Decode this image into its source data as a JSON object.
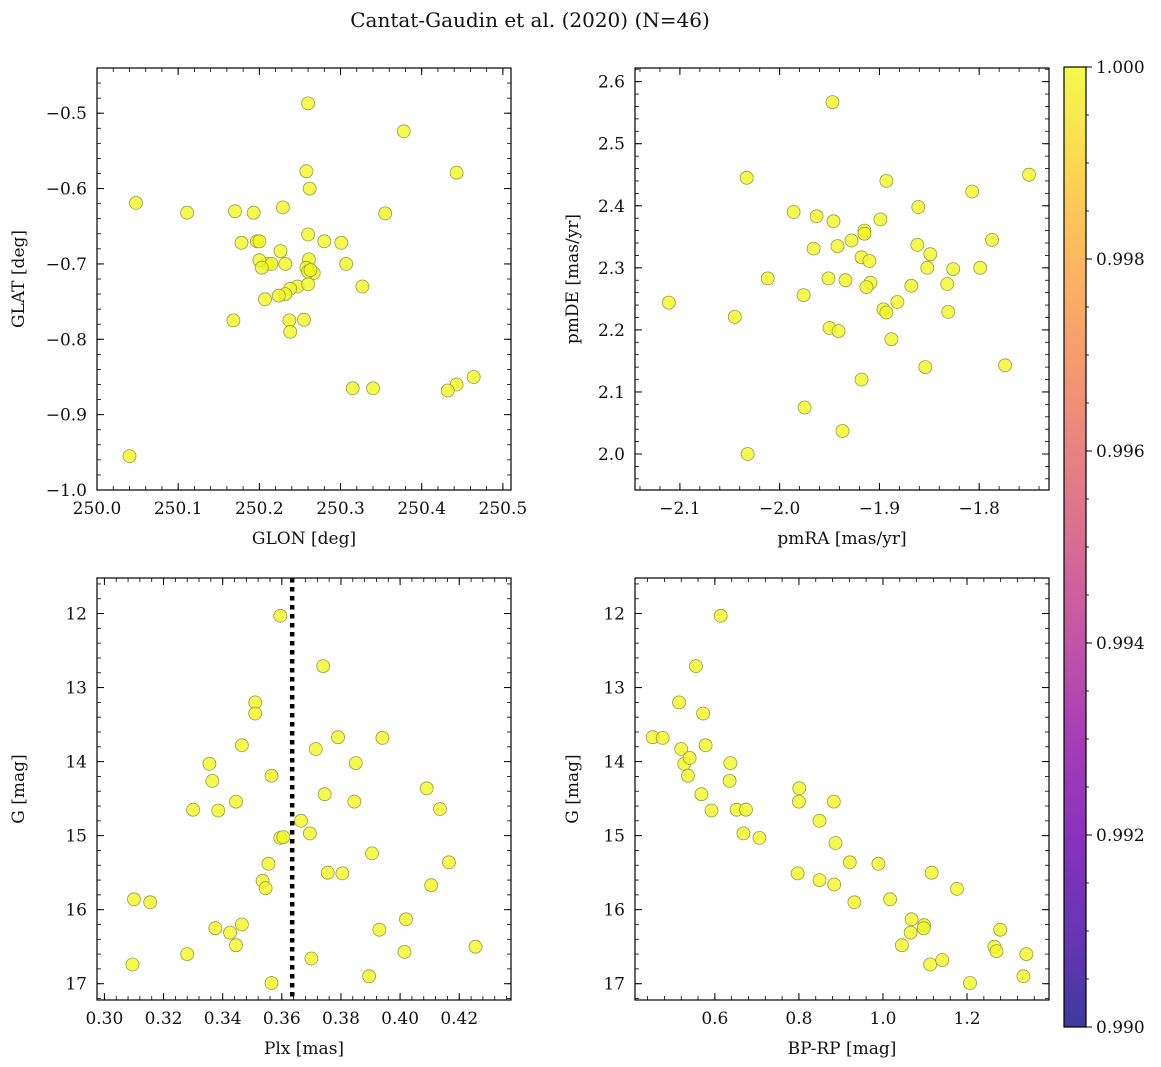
{
  "figure": {
    "title": "Cantat-Gaudin et al. (2020) (N=46)",
    "colorbar": {
      "min": 0.99,
      "max": 1.0,
      "colormap": "plasma",
      "ticks": [
        0.99,
        0.992,
        0.994,
        0.996,
        0.998,
        1.0
      ],
      "tick_labels": [
        "0.990",
        "0.992",
        "0.994",
        "0.996",
        "0.998",
        "1.000"
      ]
    },
    "marker_color": "#f0f921",
    "marker_edge_color": "#9a9a4a",
    "vline_color": "#000000"
  },
  "chart_data": [
    {
      "type": "scatter",
      "xlabel": "GLON [deg]",
      "ylabel": "GLAT [deg]",
      "xlim": [
        250.0,
        250.51
      ],
      "ylim": [
        -1.0,
        -0.44
      ],
      "xticks": [
        250.0,
        250.1,
        250.2,
        250.3,
        250.4,
        250.5
      ],
      "xtick_labels": [
        "250.0",
        "250.1",
        "250.2",
        "250.3",
        "250.4",
        "250.5"
      ],
      "yticks": [
        -1.0,
        -0.9,
        -0.8,
        -0.7,
        -0.6,
        -0.5
      ],
      "ytick_labels": [
        "−1.0",
        "−0.9",
        "−0.8",
        "−0.7",
        "−0.6",
        "−0.5"
      ],
      "x": [
        250.26,
        250.378,
        250.258,
        250.443,
        250.262,
        250.048,
        250.111,
        250.17,
        250.193,
        250.229,
        250.355,
        250.178,
        250.197,
        250.2,
        250.26,
        250.226,
        250.28,
        250.301,
        250.21,
        250.2,
        250.215,
        250.232,
        250.261,
        250.307,
        250.203,
        250.258,
        250.267,
        250.247,
        250.26,
        250.238,
        250.232,
        250.224,
        250.207,
        250.168,
        250.237,
        250.255,
        250.238,
        250.327,
        250.315,
        250.34,
        250.464,
        250.443,
        250.432,
        250.04,
        250.26,
        250.263
      ],
      "y": [
        -0.487,
        -0.524,
        -0.577,
        -0.579,
        -0.6,
        -0.619,
        -0.632,
        -0.63,
        -0.632,
        -0.625,
        -0.633,
        -0.672,
        -0.67,
        -0.67,
        -0.661,
        -0.683,
        -0.67,
        -0.672,
        -0.7,
        -0.695,
        -0.7,
        -0.7,
        -0.694,
        -0.7,
        -0.705,
        -0.705,
        -0.712,
        -0.73,
        -0.727,
        -0.733,
        -0.74,
        -0.742,
        -0.747,
        -0.775,
        -0.775,
        -0.774,
        -0.79,
        -0.73,
        -0.865,
        -0.865,
        -0.85,
        -0.86,
        -0.868,
        -0.955,
        -0.71,
        -0.708
      ],
      "color_values": [
        1,
        1,
        1,
        1,
        1,
        1,
        1,
        1,
        1,
        1,
        1,
        1,
        1,
        1,
        1,
        1,
        1,
        1,
        1,
        1,
        1,
        1,
        1,
        1,
        1,
        1,
        1,
        1,
        1,
        1,
        1,
        1,
        1,
        1,
        1,
        1,
        1,
        1,
        1,
        1,
        1,
        1,
        1,
        1,
        1,
        1
      ]
    },
    {
      "type": "scatter",
      "xlabel": "pmRA [mas/yr]",
      "ylabel": "pmDE [mas/yr]",
      "xlim": [
        -2.145,
        -1.73
      ],
      "ylim": [
        1.942,
        2.622
      ],
      "xticks": [
        -2.1,
        -2.0,
        -1.9,
        -1.8
      ],
      "xtick_labels": [
        "−2.1",
        "−2.0",
        "−1.9",
        "−1.8"
      ],
      "yticks": [
        2.0,
        2.1,
        2.2,
        2.3,
        2.4,
        2.5,
        2.6
      ],
      "ytick_labels": [
        "2.0",
        "2.1",
        "2.2",
        "2.3",
        "2.4",
        "2.5",
        "2.6"
      ],
      "x": [
        -1.947,
        -2.033,
        -1.75,
        -1.893,
        -1.807,
        -1.986,
        -1.963,
        -1.861,
        -1.915,
        -1.915,
        -1.899,
        -1.928,
        -1.862,
        -1.942,
        -1.966,
        -1.849,
        -1.918,
        -1.91,
        -1.826,
        -1.852,
        -1.799,
        -2.012,
        -1.951,
        -1.934,
        -1.909,
        -1.913,
        -1.868,
        -1.832,
        -1.976,
        -1.882,
        -2.111,
        -1.95,
        -1.941,
        -1.896,
        -1.893,
        -2.045,
        -1.831,
        -1.888,
        -1.854,
        -1.918,
        -1.975,
        -1.937,
        -2.032,
        -1.787,
        -1.774,
        -1.946
      ],
      "y": [
        2.567,
        2.445,
        2.45,
        2.44,
        2.423,
        2.39,
        2.383,
        2.398,
        2.36,
        2.355,
        2.378,
        2.344,
        2.337,
        2.335,
        2.331,
        2.322,
        2.317,
        2.311,
        2.298,
        2.3,
        2.3,
        2.283,
        2.283,
        2.28,
        2.276,
        2.269,
        2.271,
        2.274,
        2.256,
        2.245,
        2.244,
        2.203,
        2.198,
        2.233,
        2.228,
        2.221,
        2.229,
        2.185,
        2.14,
        2.12,
        2.075,
        2.037,
        2.0,
        2.345,
        2.143,
        2.375
      ],
      "color_values": [
        1,
        1,
        1,
        1,
        1,
        1,
        1,
        1,
        1,
        1,
        1,
        1,
        1,
        1,
        1,
        1,
        1,
        1,
        1,
        1,
        1,
        1,
        1,
        1,
        1,
        1,
        1,
        1,
        1,
        1,
        1,
        1,
        1,
        1,
        1,
        1,
        1,
        1,
        1,
        1,
        1,
        1,
        1,
        1,
        1,
        1
      ]
    },
    {
      "type": "scatter",
      "xlabel": "Plx [mas]",
      "ylabel": "G [mag]",
      "xlim": [
        0.2975,
        0.4375
      ],
      "ylim": [
        17.22,
        11.52
      ],
      "yinverted": true,
      "vline": 0.3635,
      "xticks": [
        0.3,
        0.32,
        0.34,
        0.36,
        0.38,
        0.4,
        0.42
      ],
      "xtick_labels": [
        "0.30",
        "0.32",
        "0.34",
        "0.36",
        "0.38",
        "0.40",
        "0.42"
      ],
      "yticks": [
        12,
        13,
        14,
        15,
        16,
        17
      ],
      "ytick_labels": [
        "12",
        "13",
        "14",
        "15",
        "16",
        "17"
      ],
      "x": [
        0.3595,
        0.374,
        0.351,
        0.351,
        0.379,
        0.394,
        0.3465,
        0.3715,
        0.3355,
        0.385,
        0.3365,
        0.3565,
        0.409,
        0.3745,
        0.3385,
        0.33,
        0.3445,
        0.3845,
        0.4135,
        0.3665,
        0.3695,
        0.3595,
        0.3905,
        0.3555,
        0.4165,
        0.3755,
        0.3805,
        0.3535,
        0.4105,
        0.3545,
        0.31,
        0.3155,
        0.3375,
        0.3465,
        0.3425,
        0.393,
        0.402,
        0.3445,
        0.4255,
        0.328,
        0.4015,
        0.3895,
        0.37,
        0.3095,
        0.3565,
        0.3605
      ],
      "y": [
        12.03,
        12.71,
        13.2,
        13.35,
        13.67,
        13.68,
        13.78,
        13.83,
        14.03,
        14.02,
        14.26,
        14.19,
        14.36,
        14.44,
        14.66,
        14.65,
        14.54,
        14.54,
        14.64,
        14.8,
        14.97,
        15.03,
        15.24,
        15.38,
        15.36,
        15.5,
        15.51,
        15.61,
        15.67,
        15.71,
        15.86,
        15.9,
        16.25,
        16.2,
        16.31,
        16.27,
        16.13,
        16.48,
        16.5,
        16.6,
        16.57,
        16.9,
        16.66,
        16.74,
        16.99,
        15.02
      ],
      "color_values": [
        1,
        1,
        1,
        1,
        1,
        1,
        1,
        1,
        1,
        1,
        1,
        1,
        1,
        1,
        1,
        1,
        1,
        1,
        1,
        1,
        1,
        1,
        1,
        1,
        1,
        1,
        1,
        1,
        1,
        1,
        1,
        1,
        1,
        1,
        1,
        1,
        1,
        1,
        1,
        1,
        1,
        1,
        1,
        1,
        1,
        1
      ]
    },
    {
      "type": "scatter",
      "xlabel": "BP-RP [mag]",
      "ylabel": "G [mag]",
      "xlim": [
        0.41,
        1.395
      ],
      "ylim": [
        17.22,
        11.52
      ],
      "yinverted": true,
      "xticks": [
        0.6,
        0.8,
        1.0,
        1.2
      ],
      "xtick_labels": [
        "0.6",
        "0.8",
        "1.0",
        "1.2"
      ],
      "yticks": [
        12,
        13,
        14,
        15,
        16,
        17
      ],
      "ytick_labels": [
        "12",
        "13",
        "14",
        "15",
        "16",
        "17"
      ],
      "x": [
        0.614,
        0.555,
        0.515,
        0.572,
        0.452,
        0.476,
        0.578,
        0.52,
        0.527,
        0.637,
        0.536,
        0.635,
        0.801,
        0.568,
        0.592,
        0.8,
        0.883,
        0.652,
        0.674,
        0.849,
        0.668,
        0.706,
        0.887,
        0.921,
        0.989,
        1.116,
        0.797,
        0.849,
        0.884,
        1.176,
        1.017,
        0.932,
        1.098,
        1.068,
        1.066,
        1.279,
        1.097,
        1.265,
        1.045,
        1.27,
        1.112,
        1.141,
        1.341,
        1.334,
        1.207,
        0.54
      ],
      "y": [
        12.03,
        12.71,
        13.2,
        13.35,
        13.67,
        13.68,
        13.78,
        13.83,
        14.03,
        14.02,
        14.19,
        14.26,
        14.36,
        14.44,
        14.66,
        14.54,
        14.54,
        14.65,
        14.65,
        14.8,
        14.97,
        15.03,
        15.1,
        15.36,
        15.38,
        15.5,
        15.51,
        15.6,
        15.66,
        15.72,
        15.86,
        15.9,
        16.21,
        16.13,
        16.31,
        16.27,
        16.25,
        16.5,
        16.48,
        16.56,
        16.74,
        16.68,
        16.6,
        16.9,
        16.99,
        13.95
      ],
      "color_values": [
        1,
        1,
        1,
        1,
        1,
        1,
        1,
        1,
        1,
        1,
        1,
        1,
        1,
        1,
        1,
        1,
        1,
        1,
        1,
        1,
        1,
        1,
        1,
        1,
        1,
        1,
        1,
        1,
        1,
        1,
        1,
        1,
        1,
        1,
        1,
        1,
        1,
        1,
        1,
        1,
        1,
        1,
        1,
        1,
        1,
        1
      ]
    }
  ]
}
